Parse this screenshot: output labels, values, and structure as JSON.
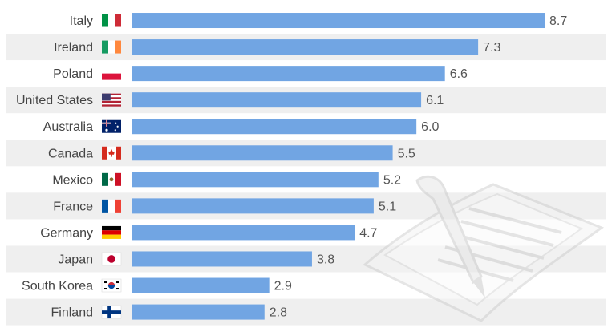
{
  "chart_data": {
    "type": "bar",
    "orientation": "horizontal",
    "categories": [
      "Italy",
      "Ireland",
      "Poland",
      "United States",
      "Australia",
      "Canada",
      "Mexico",
      "France",
      "Germany",
      "Japan",
      "South Korea",
      "Finland"
    ],
    "values": [
      8.7,
      7.3,
      6.6,
      6.1,
      6.0,
      5.5,
      5.2,
      5.1,
      4.7,
      3.8,
      2.9,
      2.8
    ],
    "value_labels": [
      "8.7",
      "7.3",
      "6.6",
      "6.1",
      "6.0",
      "5.5",
      "5.2",
      "5.1",
      "4.7",
      "3.8",
      "2.9",
      "2.8"
    ],
    "xlim": [
      0,
      8.7
    ],
    "bar_color": "#71a5e3",
    "row_stripe_color": "#efefef",
    "grid": false,
    "legend": "none"
  },
  "flags": [
    {
      "country": "Italy",
      "icon": "italy-flag-icon"
    },
    {
      "country": "Ireland",
      "icon": "ireland-flag-icon"
    },
    {
      "country": "Poland",
      "icon": "poland-flag-icon"
    },
    {
      "country": "United States",
      "icon": "united-states-flag-icon"
    },
    {
      "country": "Australia",
      "icon": "australia-flag-icon"
    },
    {
      "country": "Canada",
      "icon": "canada-flag-icon"
    },
    {
      "country": "Mexico",
      "icon": "mexico-flag-icon"
    },
    {
      "country": "France",
      "icon": "france-flag-icon"
    },
    {
      "country": "Germany",
      "icon": "germany-flag-icon"
    },
    {
      "country": "Japan",
      "icon": "japan-flag-icon"
    },
    {
      "country": "South Korea",
      "icon": "south-korea-flag-icon"
    },
    {
      "country": "Finland",
      "icon": "finland-flag-icon"
    }
  ],
  "decoration": {
    "icon": "document-with-pen-icon"
  }
}
